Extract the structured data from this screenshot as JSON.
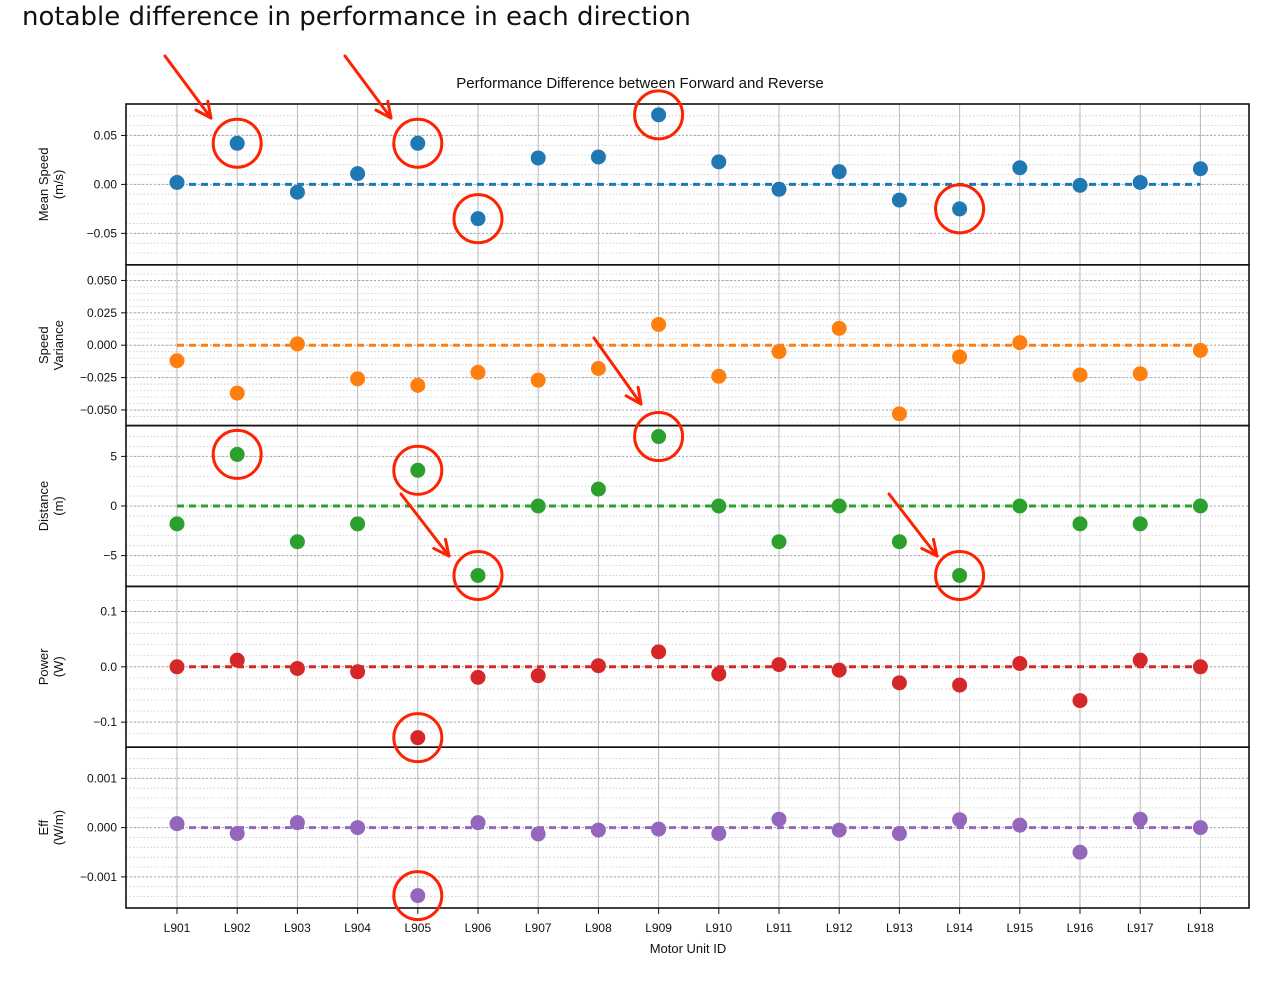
{
  "headline": "notable difference in performance in each direction",
  "colors": {
    "mean_speed": "#1f77b4",
    "speed_variance": "#ff7f0e",
    "distance": "#2ca02c",
    "power": "#d62728",
    "eff": "#9467bd",
    "highlight": "#ff2200"
  },
  "chart_data": {
    "type": "scatter",
    "title": "Performance Difference between Forward and Reverse",
    "xlabel": "Motor Unit ID",
    "categories": [
      "L901",
      "L902",
      "L903",
      "L904",
      "L905",
      "L906",
      "L907",
      "L908",
      "L909",
      "L910",
      "L911",
      "L912",
      "L913",
      "L914",
      "L915",
      "L916",
      "L917",
      "L918"
    ],
    "reference_line": 0,
    "series": [
      {
        "name": "Mean Speed",
        "ylabel": [
          "Mean Speed",
          "(m/s)"
        ],
        "color": "#1f77b4",
        "ylim": [
          -0.078,
          0.078
        ],
        "ticks": [
          0.05,
          0.0,
          -0.05
        ],
        "tick_labels": [
          "0.05",
          "0.00",
          "−0.05"
        ],
        "values": [
          0.002,
          0.042,
          -0.008,
          0.011,
          0.042,
          -0.035,
          0.027,
          0.028,
          0.071,
          0.023,
          -0.005,
          0.013,
          -0.016,
          -0.025,
          0.017,
          -0.001,
          0.002,
          0.016
        ],
        "highlighted": [
          "L902",
          "L905",
          "L906",
          "L909",
          "L914"
        ]
      },
      {
        "name": "Speed Variance",
        "ylabel": [
          "Speed",
          "Variance"
        ],
        "color": "#ff7f0e",
        "ylim": [
          -0.059,
          0.059
        ],
        "ticks": [
          0.05,
          0.025,
          0.0,
          -0.025,
          -0.05
        ],
        "tick_labels": [
          "0.050",
          "0.025",
          "0.000",
          "−0.025",
          "−0.050"
        ],
        "values": [
          -0.012,
          -0.037,
          0.001,
          -0.026,
          -0.031,
          -0.021,
          -0.027,
          -0.018,
          0.016,
          -0.024,
          -0.005,
          0.013,
          -0.053,
          -0.009,
          0.002,
          -0.023,
          -0.022,
          -0.004
        ],
        "highlighted": []
      },
      {
        "name": "Distance",
        "ylabel": [
          "Distance",
          "(m)"
        ],
        "color": "#2ca02c",
        "ylim": [
          -7.7,
          7.7
        ],
        "ticks": [
          5,
          0,
          -5
        ],
        "tick_labels": [
          "5",
          "0",
          "−5"
        ],
        "values": [
          -1.8,
          5.2,
          -3.6,
          -1.8,
          3.6,
          -7.0,
          0.0,
          1.7,
          7.0,
          0.0,
          -3.6,
          0.0,
          -3.6,
          -7.0,
          0.0,
          -1.8,
          -1.8,
          0.0
        ],
        "highlighted": [
          "L902",
          "L905",
          "L906",
          "L909",
          "L914"
        ]
      },
      {
        "name": "Power",
        "ylabel": [
          "Power",
          "(W)"
        ],
        "color": "#d62728",
        "ylim": [
          -0.138,
          0.138
        ],
        "ticks": [
          0.1,
          0.0,
          -0.1
        ],
        "tick_labels": [
          "0.1",
          "0.0",
          "−0.1"
        ],
        "values": [
          0.0,
          0.012,
          -0.003,
          -0.009,
          -0.128,
          -0.019,
          -0.016,
          0.002,
          0.027,
          -0.013,
          0.004,
          -0.006,
          -0.029,
          -0.033,
          0.006,
          -0.061,
          0.012,
          0.0
        ],
        "highlighted": [
          "L905"
        ]
      },
      {
        "name": "Eff",
        "ylabel": [
          "Eff",
          "(W/m)"
        ],
        "color": "#9467bd",
        "ylim": [
          -0.00155,
          0.00155
        ],
        "ticks": [
          0.001,
          0.0,
          -0.001
        ],
        "tick_labels": [
          "0.001",
          "0.000",
          "−0.001"
        ],
        "values": [
          8e-05,
          -0.00012,
          0.0001,
          0.0,
          -0.00138,
          0.0001,
          -0.00013,
          -5e-05,
          -3e-05,
          -0.00012,
          0.00017,
          -5e-05,
          -0.00012,
          0.00016,
          5e-05,
          -0.0005,
          0.00017,
          0.0
        ],
        "highlighted": [
          "L905"
        ]
      }
    ]
  }
}
